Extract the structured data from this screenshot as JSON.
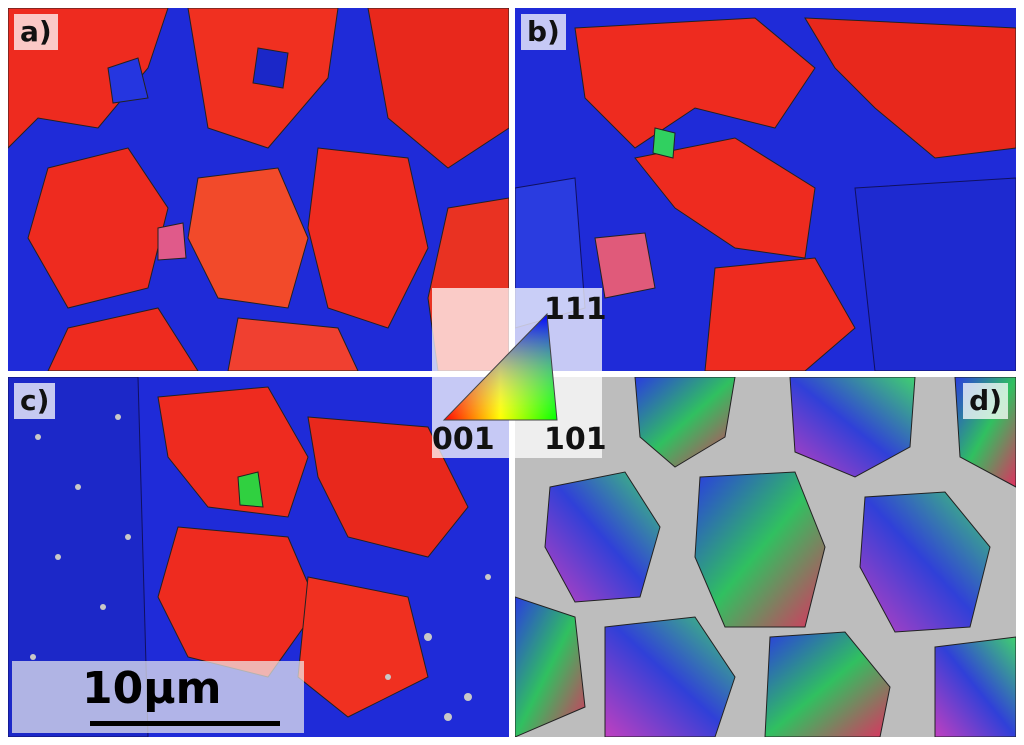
{
  "panels": {
    "a": {
      "label": "a)"
    },
    "b": {
      "label": "b)"
    },
    "c": {
      "label": "c)"
    },
    "d": {
      "label": "d)"
    }
  },
  "color_key": {
    "top_label": "111",
    "left_label": "001",
    "right_label": "101",
    "corner_colors": {
      "001": "#ff0000",
      "101": "#00ff00",
      "111": "#0000ff"
    }
  },
  "scale_bar": {
    "label": "10μm"
  },
  "colors": {
    "grain_red": "#ee2b1f",
    "grain_blue": "#1f2bd8",
    "background_gray": "#bdbdbd"
  }
}
